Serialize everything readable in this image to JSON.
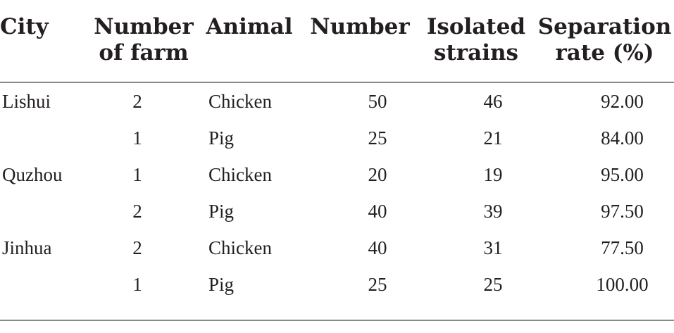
{
  "table": {
    "headers": [
      {
        "key": "city",
        "lines": [
          "City"
        ]
      },
      {
        "key": "farm",
        "lines": [
          "Number",
          "of farm"
        ]
      },
      {
        "key": "animal",
        "lines": [
          "Animal"
        ]
      },
      {
        "key": "number",
        "lines": [
          "Number"
        ]
      },
      {
        "key": "strains",
        "lines": [
          "Isolated",
          "strains"
        ]
      },
      {
        "key": "rate",
        "lines": [
          "Separation",
          "rate (%)"
        ]
      }
    ],
    "rows": [
      {
        "city": "Lishui",
        "farm": "2",
        "animal": "Chicken",
        "number": "50",
        "strains": "46",
        "rate": "92.00"
      },
      {
        "city": "",
        "farm": "1",
        "animal": "Pig",
        "number": "25",
        "strains": "21",
        "rate": "84.00"
      },
      {
        "city": "Quzhou",
        "farm": "1",
        "animal": "Chicken",
        "number": "20",
        "strains": "19",
        "rate": "95.00"
      },
      {
        "city": "",
        "farm": "2",
        "animal": "Pig",
        "number": "40",
        "strains": "39",
        "rate": "97.50"
      },
      {
        "city": "Jinhua",
        "farm": "2",
        "animal": "Chicken",
        "number": "40",
        "strains": "31",
        "rate": "77.50"
      },
      {
        "city": "",
        "farm": "1",
        "animal": "Pig",
        "number": "25",
        "strains": "25",
        "rate": "100.00"
      }
    ]
  }
}
